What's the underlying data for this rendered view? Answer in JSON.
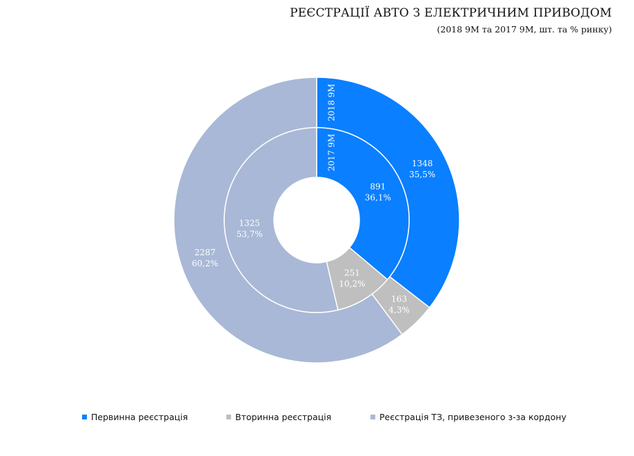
{
  "title": "РЕЄСТРАЦІЇ АВТО З ЕЛЕКТРИЧНИМ ПРИВОДОМ",
  "subtitle": "(2018 9М та 2017 9М, шт. та % ринку)",
  "chart_data": {
    "type": "pie",
    "variant": "nested-donut",
    "categories": [
      "Первинна реєстрація",
      "Вторинна реєстрація",
      "Реєстрація ТЗ, привезеного з-за кордону"
    ],
    "colors": [
      "#0A7FFF",
      "#BFBFBF",
      "#A9B8D6"
    ],
    "series": [
      {
        "name": "2018 9М",
        "ring": "outer",
        "values": [
          1348,
          163,
          2287
        ],
        "percent_labels": [
          "35,5%",
          "4,3%",
          "60,2%"
        ]
      },
      {
        "name": "2017 9М",
        "ring": "inner",
        "values": [
          891,
          251,
          1325
        ],
        "percent_labels": [
          "36,1%",
          "10,2%",
          "53,7%"
        ]
      }
    ],
    "legend_position": "bottom"
  }
}
